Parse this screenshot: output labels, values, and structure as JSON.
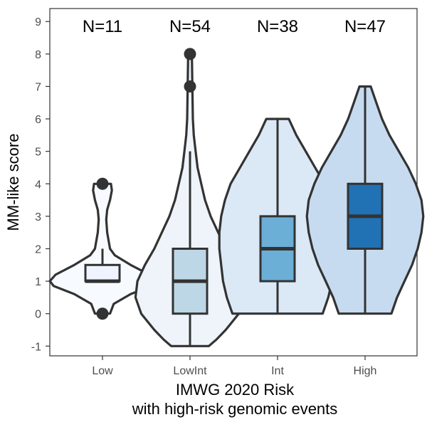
{
  "chart_data": {
    "type": "violin",
    "xlabel_lines": [
      "IMWG 2020 Risk",
      "with high-risk genomic events"
    ],
    "ylabel": "MM-like score",
    "ylim": [
      -1.3,
      9.4
    ],
    "yticks": [
      -1,
      0,
      1,
      2,
      3,
      4,
      5,
      6,
      7,
      8,
      9
    ],
    "grid": false,
    "legend": "none",
    "groups": [
      {
        "category": "Low",
        "n_label": "N=11",
        "violin_fill": "#f7fbff",
        "box_fill": "#eff3ff",
        "box": {
          "q1": 1,
          "median": 1,
          "q3": 1.5,
          "whisker_low": 1,
          "whisker_high": 2
        },
        "outliers": [
          0,
          4
        ],
        "density": [
          [
            0,
            0.08
          ],
          [
            0.3,
            0.12
          ],
          [
            0.6,
            0.3
          ],
          [
            0.85,
            0.52
          ],
          [
            1.0,
            0.56
          ],
          [
            1.2,
            0.5
          ],
          [
            1.5,
            0.3
          ],
          [
            1.8,
            0.13
          ],
          [
            2.0,
            0.08
          ],
          [
            2.5,
            0.05
          ],
          [
            2.9,
            0.04
          ],
          [
            3.2,
            0.05
          ],
          [
            3.5,
            0.08
          ],
          [
            3.8,
            0.1
          ],
          [
            4.0,
            0.09
          ]
        ]
      },
      {
        "category": "LowInt",
        "n_label": "N=54",
        "violin_fill": "#eef4fa",
        "box_fill": "#bdd7e7",
        "box": {
          "q1": 0,
          "median": 1,
          "q3": 2,
          "whisker_low": -1,
          "whisker_high": 5
        },
        "outliers": [
          7,
          8
        ],
        "density": [
          [
            -1,
            0.2
          ],
          [
            -0.8,
            0.28
          ],
          [
            -0.5,
            0.38
          ],
          [
            0,
            0.52
          ],
          [
            0.5,
            0.58
          ],
          [
            1.0,
            0.56
          ],
          [
            1.5,
            0.48
          ],
          [
            2.0,
            0.38
          ],
          [
            2.5,
            0.3
          ],
          [
            3.0,
            0.22
          ],
          [
            3.5,
            0.16
          ],
          [
            4.0,
            0.12
          ],
          [
            4.5,
            0.08
          ],
          [
            5.0,
            0.06
          ],
          [
            5.5,
            0.04
          ],
          [
            6.0,
            0.03
          ],
          [
            7.0,
            0.025
          ],
          [
            8.0,
            0.02
          ]
        ]
      },
      {
        "category": "Int",
        "n_label": "N=38",
        "violin_fill": "#dbe9f6",
        "box_fill": "#6baed6",
        "box": {
          "q1": 1,
          "median": 2,
          "q3": 3,
          "whisker_low": 0,
          "whisker_high": 6
        },
        "outliers": [],
        "density": [
          [
            0,
            0.48
          ],
          [
            0.5,
            0.54
          ],
          [
            1.0,
            0.58
          ],
          [
            1.5,
            0.6
          ],
          [
            2.0,
            0.62
          ],
          [
            2.5,
            0.62
          ],
          [
            3.0,
            0.6
          ],
          [
            3.5,
            0.56
          ],
          [
            4.0,
            0.5
          ],
          [
            4.5,
            0.4
          ],
          [
            5.0,
            0.3
          ],
          [
            5.5,
            0.2
          ],
          [
            6.0,
            0.12
          ]
        ]
      },
      {
        "category": "High",
        "n_label": "N=47",
        "violin_fill": "#c6dbef",
        "box_fill": "#2171b5",
        "box": {
          "q1": 2,
          "median": 3,
          "q3": 4,
          "whisker_low": 0,
          "whisker_high": 7
        },
        "outliers": [],
        "density": [
          [
            0,
            0.28
          ],
          [
            0.5,
            0.34
          ],
          [
            1.0,
            0.42
          ],
          [
            1.5,
            0.5
          ],
          [
            2.0,
            0.56
          ],
          [
            2.5,
            0.6
          ],
          [
            3.0,
            0.62
          ],
          [
            3.5,
            0.6
          ],
          [
            4.0,
            0.54
          ],
          [
            4.5,
            0.46
          ],
          [
            5.0,
            0.36
          ],
          [
            5.5,
            0.26
          ],
          [
            6.0,
            0.18
          ],
          [
            6.5,
            0.12
          ],
          [
            7.0,
            0.06
          ]
        ]
      }
    ],
    "colors": {
      "outline": "#333333",
      "axis": "#333333",
      "tick_text": "#4d4d4d"
    }
  }
}
